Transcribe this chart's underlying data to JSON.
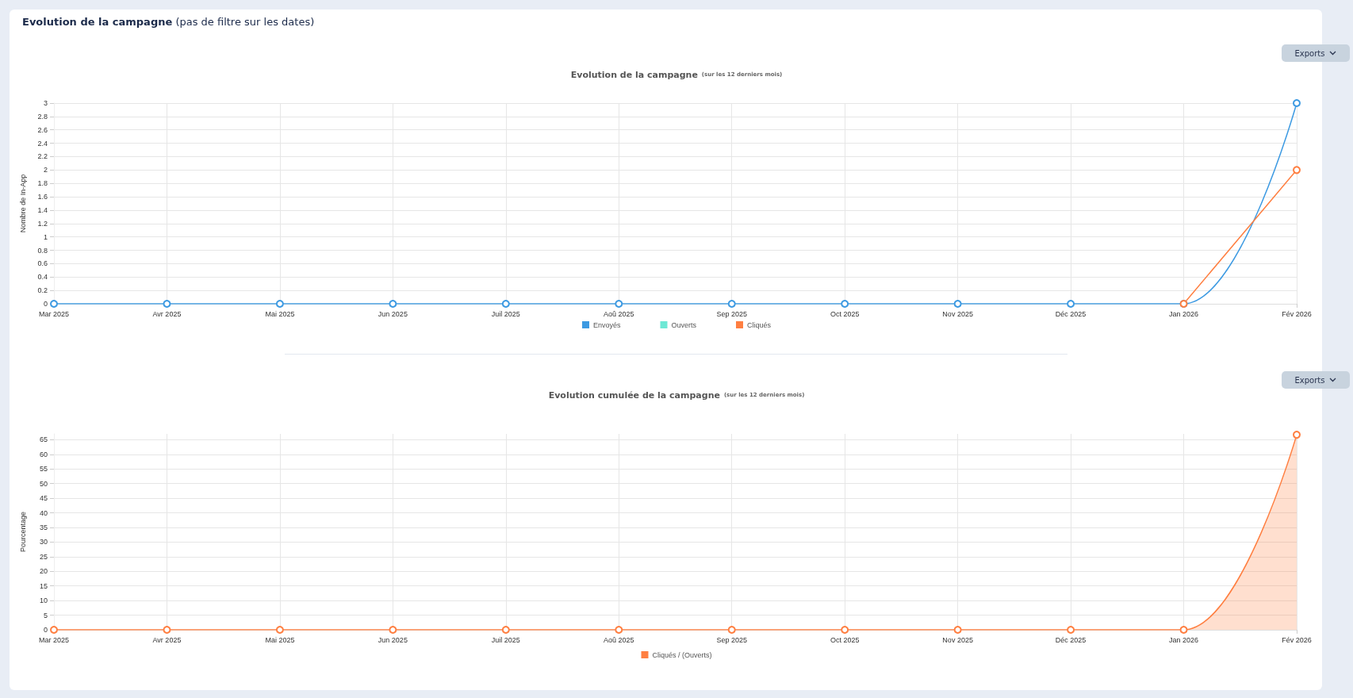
{
  "chart_data": [
    {
      "type": "line",
      "title": "Evolution de la campagne",
      "subtitle": "(sur les 12 derniers mois)",
      "ylabel": "Nombre de In-App",
      "annotations": [
        "Evolution de la campagne",
        "(pas de filtre sur les dates)",
        "Exports"
      ],
      "categories": [
        "Mar 2025",
        "Avr 2025",
        "Mai 2025",
        "Jun 2025",
        "Juil 2025",
        "Aoû 2025",
        "Sep 2025",
        "Oct 2025",
        "Nov 2025",
        "Déc 2025",
        "Jan 2026",
        "Fév 2026"
      ],
      "series": [
        {
          "name": "Envoyés",
          "color": "#3d9ae2",
          "values": [
            0,
            0,
            0,
            0,
            0,
            0,
            0,
            0,
            0,
            0,
            0,
            3
          ]
        },
        {
          "name": "Ouverts",
          "color": "#6ee8d5",
          "values": [
            null,
            null,
            null,
            null,
            null,
            null,
            null,
            null,
            null,
            null,
            null,
            null
          ]
        },
        {
          "name": "Cliqués",
          "color": "#ff7f41",
          "values": [
            null,
            null,
            null,
            null,
            null,
            null,
            null,
            null,
            null,
            null,
            0,
            2
          ]
        }
      ],
      "ylim": [
        0,
        3
      ],
      "yticks": [
        0,
        0.2,
        0.4,
        0.6,
        0.8,
        1,
        1.2,
        1.4,
        1.6,
        1.8,
        2,
        2.2,
        2.4,
        2.6,
        2.8,
        3
      ],
      "grid": true,
      "legend": "bottom",
      "marker": "circle",
      "line_style": "solid"
    },
    {
      "type": "area",
      "title": "Evolution cumulée de la campagne",
      "subtitle": "(sur les 12 derniers mois)",
      "ylabel": "Pourcentage",
      "annotations": [
        "Exports"
      ],
      "categories": [
        "Mar 2025",
        "Avr 2025",
        "Mai 2025",
        "Jun 2025",
        "Juil 2025",
        "Aoû 2025",
        "Sep 2025",
        "Oct 2025",
        "Nov 2025",
        "Déc 2025",
        "Jan 2026",
        "Fév 2026"
      ],
      "series": [
        {
          "name": "Cliqués / (Ouverts)",
          "color": "#ff7f41",
          "values": [
            0,
            0,
            0,
            0,
            0,
            0,
            0,
            0,
            0,
            0,
            0,
            66.7
          ]
        }
      ],
      "ylim": [
        0,
        67
      ],
      "yticks": [
        0,
        5,
        10,
        15,
        20,
        25,
        30,
        35,
        40,
        45,
        50,
        55,
        60,
        65
      ],
      "grid": true,
      "legend": "bottom",
      "marker": "circle",
      "line_style": "solid"
    }
  ]
}
